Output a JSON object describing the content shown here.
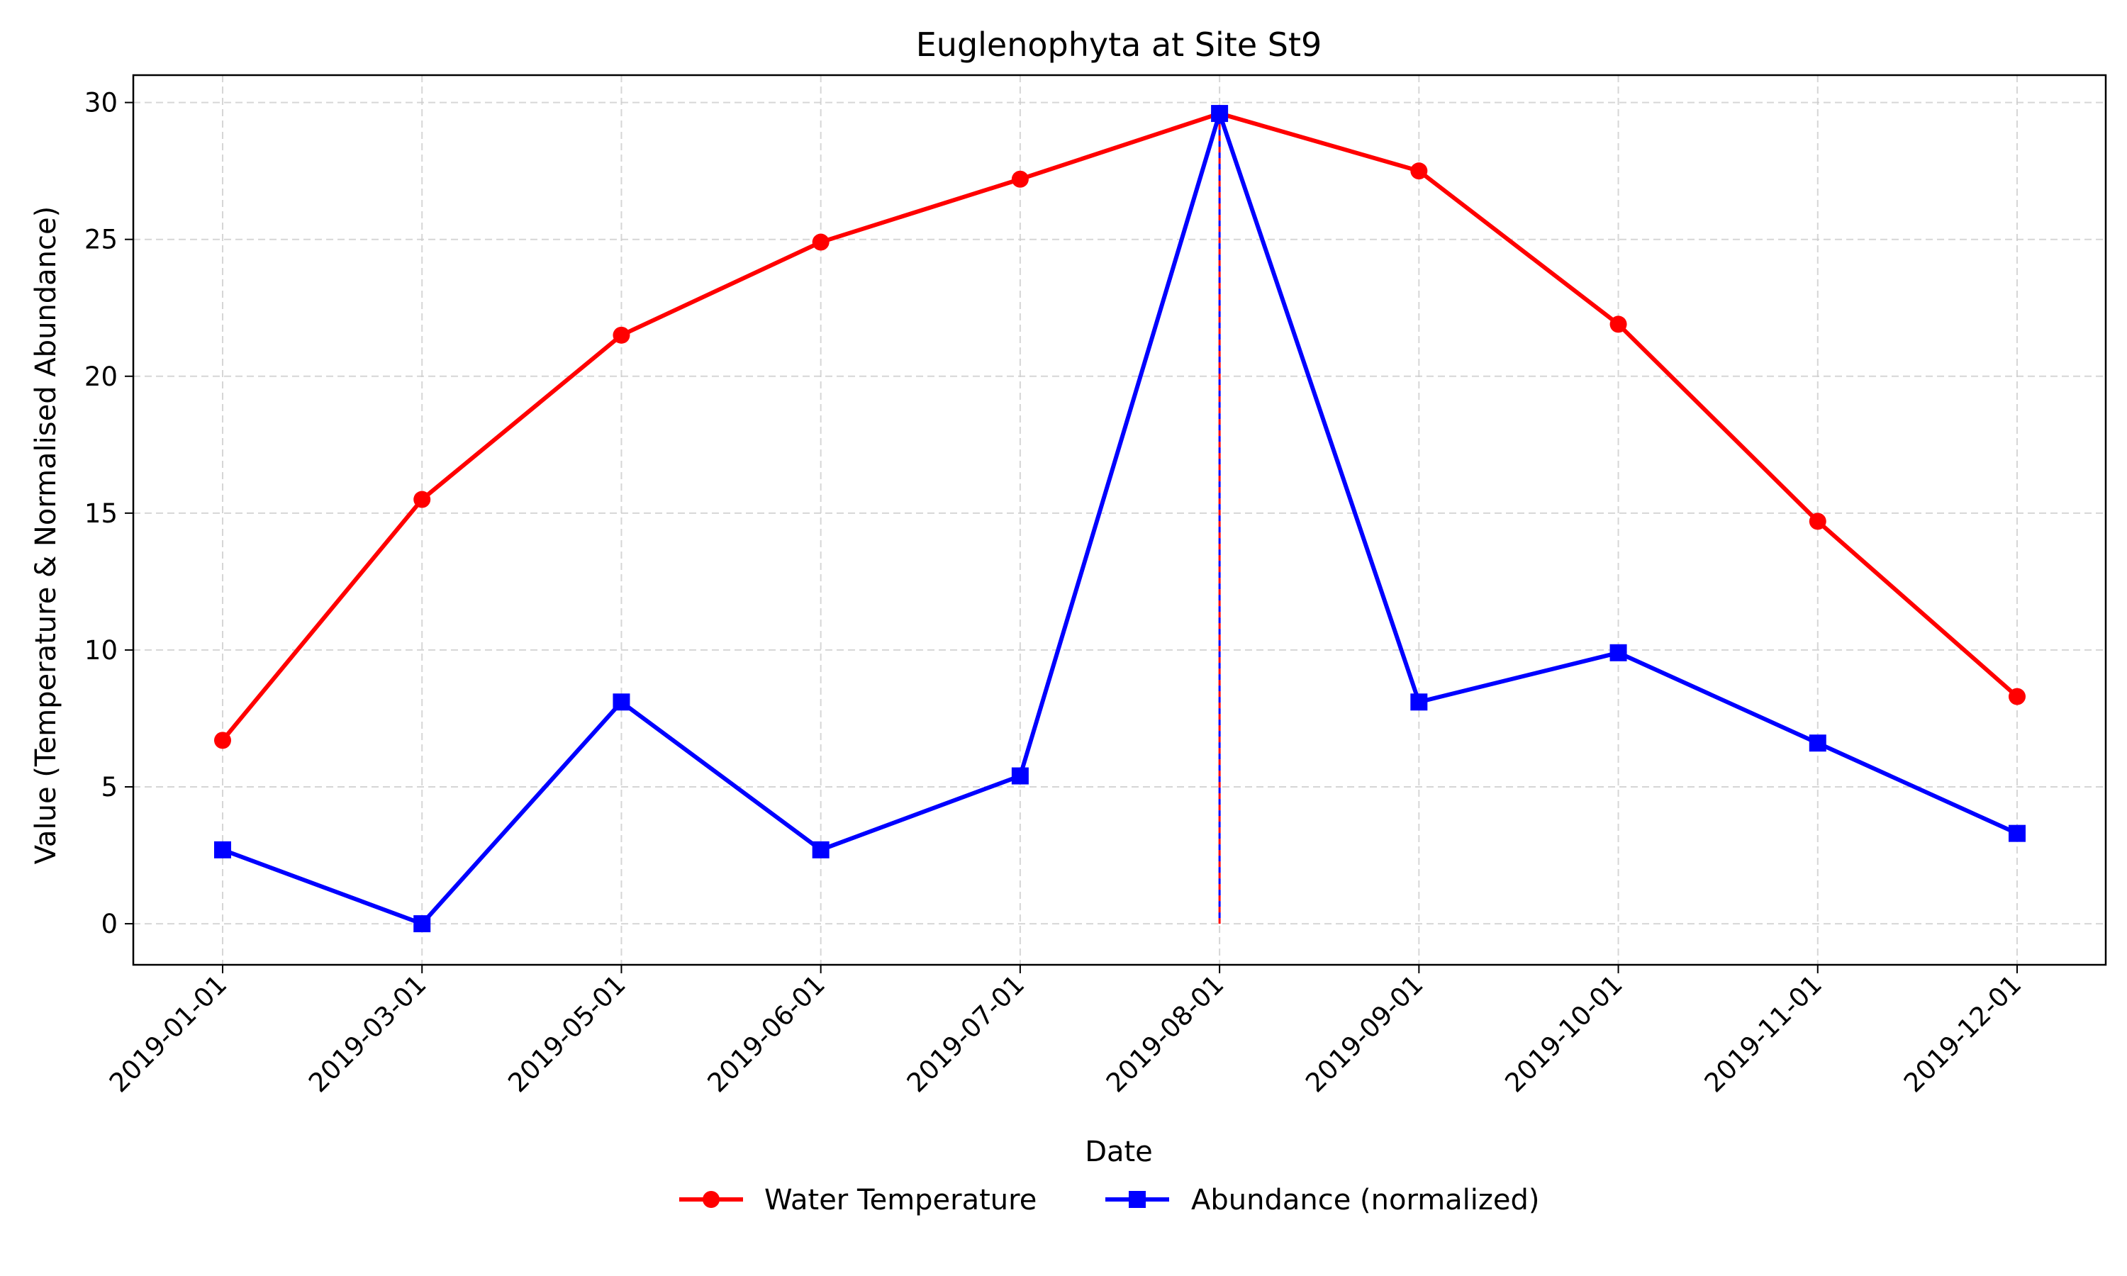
{
  "chart_data": {
    "type": "line",
    "title": "Euglenophyta at Site St9",
    "xlabel": "Date",
    "ylabel": "Value (Temperature & Normalised Abundance)",
    "categories": [
      "2019-01-01",
      "2019-03-01",
      "2019-05-01",
      "2019-06-01",
      "2019-07-01",
      "2019-08-01",
      "2019-09-01",
      "2019-10-01",
      "2019-11-01",
      "2019-12-01"
    ],
    "ylim": [
      -1.5,
      31
    ],
    "yticks": [
      0,
      5,
      10,
      15,
      20,
      25,
      30
    ],
    "grid": true,
    "legend_position": "bottom-center",
    "series": [
      {
        "name": "Water Temperature",
        "color": "#ff0000",
        "marker": "circle",
        "values": [
          6.7,
          15.5,
          21.5,
          24.9,
          27.2,
          29.6,
          27.5,
          21.9,
          14.7,
          8.3
        ]
      },
      {
        "name": "Abundance (normalized)",
        "color": "#0000ff",
        "marker": "square",
        "values": [
          2.7,
          0.0,
          8.1,
          2.7,
          5.4,
          29.6,
          8.1,
          9.9,
          6.6,
          3.3
        ]
      }
    ],
    "annotations": [
      {
        "type": "vline",
        "x": "2019-08-01",
        "from": 0,
        "to": 29.6,
        "colors": [
          "#ff0000",
          "#0000ff"
        ],
        "style": "dashed"
      }
    ]
  }
}
